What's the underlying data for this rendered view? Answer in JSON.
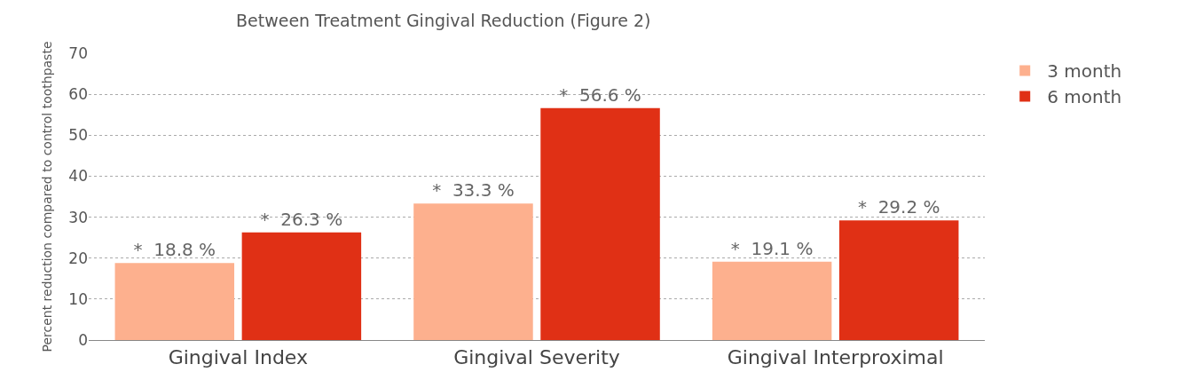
{
  "chart_data": {
    "type": "bar",
    "title": "Between Treatment Gingival Reduction (Figure 2)",
    "ylabel": "Percent reduction compared to control toothpaste",
    "categories": [
      "Gingival Index",
      "Gingival Severity",
      "Gingival Interproximal"
    ],
    "series": [
      {
        "name": "3 month",
        "color": "#fdb08e",
        "values": [
          18.8,
          33.3,
          19.1
        ],
        "value_labels": [
          "*  18.8 %",
          "*  33.3 %",
          "*  19.1 %"
        ]
      },
      {
        "name": "6 month",
        "color": "#e03015",
        "values": [
          26.3,
          56.6,
          29.2
        ],
        "value_labels": [
          "*  26.3 %",
          "*  56.6 %",
          "*  29.2 %"
        ]
      }
    ],
    "ylim": [
      0,
      70
    ],
    "yticks": [
      0,
      10,
      20,
      30,
      40,
      50,
      60,
      70
    ],
    "grid": "y",
    "legend": "top right"
  }
}
